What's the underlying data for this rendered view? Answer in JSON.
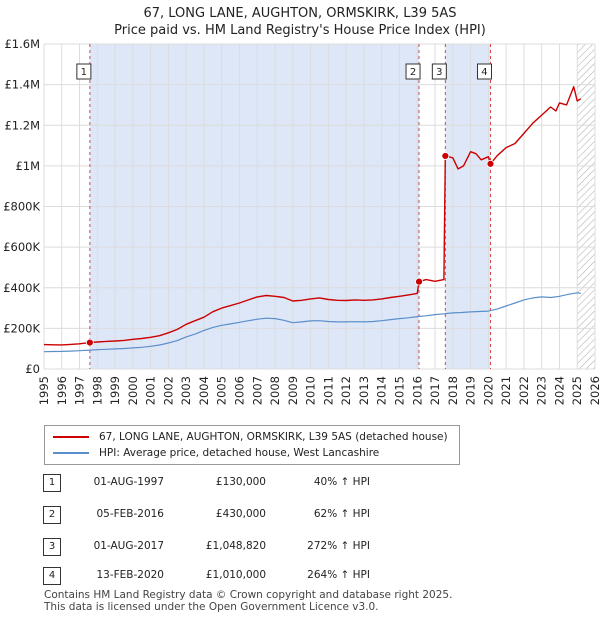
{
  "title_line1": "67, LONG LANE, AUGHTON, ORMSKIRK, L39 5AS",
  "title_line2": "Price paid vs. HM Land Registry's House Price Index (HPI)",
  "legend": {
    "property": "67, LONG LANE, AUGHTON, ORMSKIRK, L39 5AS (detached house)",
    "hpi": "HPI: Average price, detached house, West Lancashire"
  },
  "colors": {
    "property": "#cc0000",
    "hpi": "#5b8fcc",
    "shade": "#dde7f7"
  },
  "transactions": [
    {
      "num": "1",
      "date": "01-AUG-1997",
      "price": "£130,000",
      "hpi_change": "40% ↑ HPI"
    },
    {
      "num": "2",
      "date": "05-FEB-2016",
      "price": "£430,000",
      "hpi_change": "62% ↑ HPI"
    },
    {
      "num": "3",
      "date": "01-AUG-2017",
      "price": "£1,048,820",
      "hpi_change": "272% ↑ HPI"
    },
    {
      "num": "4",
      "date": "13-FEB-2020",
      "price": "£1,010,000",
      "hpi_change": "264% ↑ HPI"
    }
  ],
  "footer_line1": "Contains HM Land Registry data © Crown copyright and database right 2025.",
  "footer_line2": "This data is licensed under the Open Government Licence v3.0.",
  "chart_data": {
    "type": "line",
    "title": "67, LONG LANE, AUGHTON, ORMSKIRK, L39 5AS — Price paid vs. HM Land Registry's House Price Index (HPI)",
    "xlim": [
      1995,
      2026
    ],
    "ylim": [
      0,
      1600000
    ],
    "xticks": [
      1995,
      1996,
      1997,
      1998,
      1999,
      2000,
      2001,
      2002,
      2003,
      2004,
      2005,
      2006,
      2007,
      2008,
      2009,
      2010,
      2011,
      2012,
      2013,
      2014,
      2015,
      2016,
      2017,
      2018,
      2019,
      2020,
      2021,
      2022,
      2023,
      2024,
      2025,
      2026
    ],
    "yticks": [
      {
        "value": 0,
        "label": "£0"
      },
      {
        "value": 200000,
        "label": "£200K"
      },
      {
        "value": 400000,
        "label": "£400K"
      },
      {
        "value": 600000,
        "label": "£600K"
      },
      {
        "value": 800000,
        "label": "£800K"
      },
      {
        "value": 1000000,
        "label": "£1M"
      },
      {
        "value": 1200000,
        "label": "£1.2M"
      },
      {
        "value": 1400000,
        "label": "£1.4M"
      },
      {
        "value": 1600000,
        "label": "£1.6M"
      }
    ],
    "shaded_ranges": [
      [
        1997.58,
        2016.1
      ],
      [
        2017.58,
        2020.12
      ]
    ],
    "hatched_range": [
      2025.0,
      2026
    ],
    "sales": [
      {
        "label": "1",
        "x": 1997.58,
        "y": 130000
      },
      {
        "label": "2",
        "x": 2016.1,
        "y": 430000
      },
      {
        "label": "3",
        "x": 2017.58,
        "y": 1048820
      },
      {
        "label": "4",
        "x": 2020.12,
        "y": 1010000
      }
    ],
    "series": [
      {
        "name": "67, LONG LANE, AUGHTON, ORMSKIRK, L39 5AS (detached house)",
        "points": [
          [
            1995.0,
            120000
          ],
          [
            1995.5,
            119000
          ],
          [
            1996.0,
            118500
          ],
          [
            1996.5,
            121000
          ],
          [
            1997.0,
            124000
          ],
          [
            1997.58,
            130000
          ],
          [
            1998.0,
            133000
          ],
          [
            1998.5,
            136000
          ],
          [
            1999.0,
            138000
          ],
          [
            1999.5,
            141000
          ],
          [
            2000.0,
            146000
          ],
          [
            2000.5,
            150000
          ],
          [
            2001.0,
            156000
          ],
          [
            2001.5,
            164000
          ],
          [
            2002.0,
            178000
          ],
          [
            2002.5,
            195000
          ],
          [
            2003.0,
            220000
          ],
          [
            2003.5,
            238000
          ],
          [
            2004.0,
            255000
          ],
          [
            2004.5,
            282000
          ],
          [
            2005.0,
            300000
          ],
          [
            2005.5,
            312000
          ],
          [
            2006.0,
            325000
          ],
          [
            2006.5,
            340000
          ],
          [
            2007.0,
            355000
          ],
          [
            2007.5,
            362000
          ],
          [
            2008.0,
            358000
          ],
          [
            2008.5,
            352000
          ],
          [
            2009.0,
            335000
          ],
          [
            2009.5,
            338000
          ],
          [
            2010.0,
            345000
          ],
          [
            2010.5,
            350000
          ],
          [
            2011.0,
            342000
          ],
          [
            2011.5,
            338000
          ],
          [
            2012.0,
            337000
          ],
          [
            2012.5,
            340000
          ],
          [
            2013.0,
            338000
          ],
          [
            2013.5,
            340000
          ],
          [
            2014.0,
            345000
          ],
          [
            2014.5,
            352000
          ],
          [
            2015.0,
            358000
          ],
          [
            2015.5,
            365000
          ],
          [
            2016.0,
            372000
          ],
          [
            2016.1,
            430000
          ],
          [
            2016.5,
            440000
          ],
          [
            2017.0,
            432000
          ],
          [
            2017.5,
            440000
          ],
          [
            2017.58,
            1048820
          ],
          [
            2018.0,
            1040000
          ],
          [
            2018.3,
            985000
          ],
          [
            2018.6,
            1000000
          ],
          [
            2019.0,
            1070000
          ],
          [
            2019.3,
            1060000
          ],
          [
            2019.6,
            1030000
          ],
          [
            2020.0,
            1045000
          ],
          [
            2020.12,
            1010000
          ],
          [
            2020.5,
            1050000
          ],
          [
            2021.0,
            1090000
          ],
          [
            2021.5,
            1110000
          ],
          [
            2022.0,
            1160000
          ],
          [
            2022.5,
            1210000
          ],
          [
            2023.0,
            1250000
          ],
          [
            2023.5,
            1290000
          ],
          [
            2023.8,
            1270000
          ],
          [
            2024.0,
            1310000
          ],
          [
            2024.4,
            1300000
          ],
          [
            2024.8,
            1390000
          ],
          [
            2025.0,
            1320000
          ],
          [
            2025.2,
            1330000
          ]
        ]
      },
      {
        "name": "HPI: Average price, detached house, West Lancashire",
        "points": [
          [
            1995.0,
            85000
          ],
          [
            1995.5,
            86000
          ],
          [
            1996.0,
            86500
          ],
          [
            1996.5,
            88000
          ],
          [
            1997.0,
            90000
          ],
          [
            1997.58,
            93000
          ],
          [
            1998.0,
            95000
          ],
          [
            1998.5,
            97000
          ],
          [
            1999.0,
            99000
          ],
          [
            1999.5,
            101000
          ],
          [
            2000.0,
            104000
          ],
          [
            2000.5,
            107000
          ],
          [
            2001.0,
            112000
          ],
          [
            2001.5,
            118000
          ],
          [
            2002.0,
            128000
          ],
          [
            2002.5,
            140000
          ],
          [
            2003.0,
            158000
          ],
          [
            2003.5,
            172000
          ],
          [
            2004.0,
            190000
          ],
          [
            2004.5,
            205000
          ],
          [
            2005.0,
            215000
          ],
          [
            2005.5,
            222000
          ],
          [
            2006.0,
            230000
          ],
          [
            2006.5,
            238000
          ],
          [
            2007.0,
            245000
          ],
          [
            2007.5,
            250000
          ],
          [
            2008.0,
            248000
          ],
          [
            2008.5,
            240000
          ],
          [
            2009.0,
            228000
          ],
          [
            2009.5,
            232000
          ],
          [
            2010.0,
            237000
          ],
          [
            2010.5,
            238000
          ],
          [
            2011.0,
            234000
          ],
          [
            2011.5,
            232000
          ],
          [
            2012.0,
            232000
          ],
          [
            2012.5,
            233000
          ],
          [
            2013.0,
            232000
          ],
          [
            2013.5,
            234000
          ],
          [
            2014.0,
            238000
          ],
          [
            2014.5,
            243000
          ],
          [
            2015.0,
            248000
          ],
          [
            2015.5,
            252000
          ],
          [
            2016.0,
            258000
          ],
          [
            2016.5,
            262000
          ],
          [
            2017.0,
            268000
          ],
          [
            2017.5,
            272000
          ],
          [
            2018.0,
            276000
          ],
          [
            2018.5,
            278000
          ],
          [
            2019.0,
            281000
          ],
          [
            2019.5,
            283000
          ],
          [
            2020.0,
            285000
          ],
          [
            2020.5,
            295000
          ],
          [
            2021.0,
            310000
          ],
          [
            2021.5,
            325000
          ],
          [
            2022.0,
            340000
          ],
          [
            2022.5,
            350000
          ],
          [
            2023.0,
            355000
          ],
          [
            2023.5,
            352000
          ],
          [
            2024.0,
            358000
          ],
          [
            2024.5,
            368000
          ],
          [
            2025.0,
            375000
          ],
          [
            2025.2,
            372000
          ]
        ]
      }
    ]
  }
}
